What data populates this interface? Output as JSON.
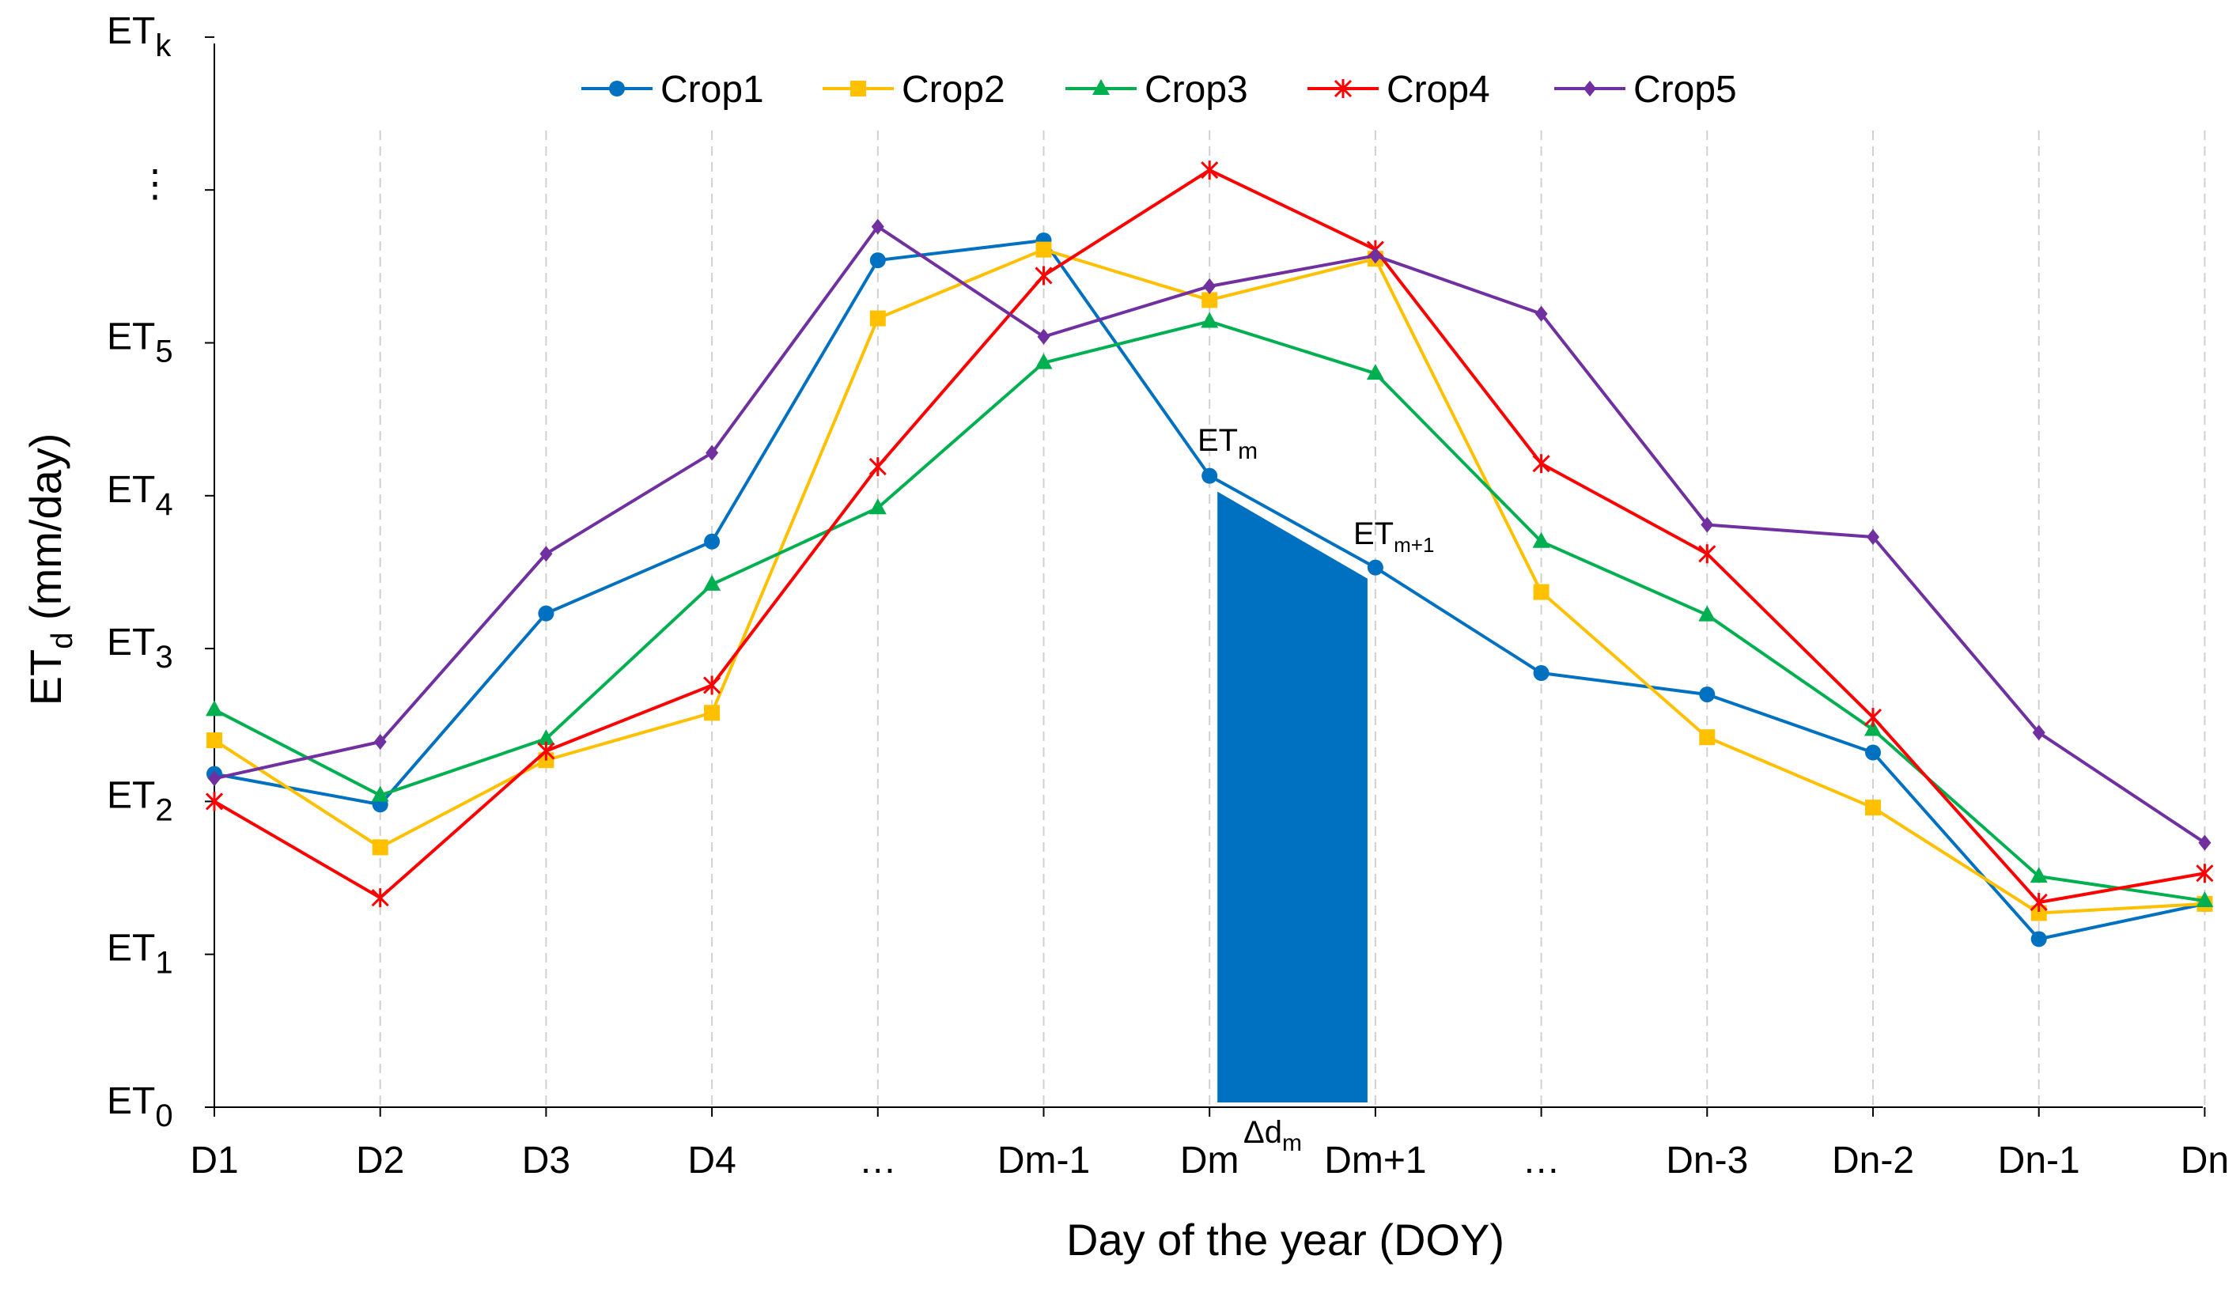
{
  "chart_data": {
    "type": "line",
    "title": "",
    "xlabel": "Day of the year (DOY)",
    "ylabel_main": "ET",
    "ylabel_sub": "d",
    "ylabel_unit": " (mm/day)",
    "categories": [
      "D1",
      "D2",
      "D3",
      "D4",
      "…",
      "Dm-1",
      "Dm",
      "Dm+1",
      "…",
      "Dn-3",
      "Dn-2",
      "Dn-1",
      "Dn"
    ],
    "ylim": [
      0,
      7
    ],
    "y_ticks": [
      {
        "value": 0,
        "main": "ET",
        "sub": "0"
      },
      {
        "value": 1,
        "main": "ET",
        "sub": "1"
      },
      {
        "value": 2,
        "main": "ET",
        "sub": "2"
      },
      {
        "value": 3,
        "main": "ET",
        "sub": "3"
      },
      {
        "value": 4,
        "main": "ET",
        "sub": "4"
      },
      {
        "value": 5,
        "main": "ET",
        "sub": "5"
      },
      {
        "value": 6,
        "main": "⋮",
        "sub": ""
      },
      {
        "value": 7,
        "main": "ET",
        "sub": "k"
      }
    ],
    "grid": "vertical-dashed",
    "legend_position": "top",
    "series": [
      {
        "name": "Crop1",
        "color": "#0070C0",
        "marker": "circle",
        "values": [
          2.18,
          1.98,
          3.23,
          3.7,
          5.54,
          5.67,
          4.13,
          3.53,
          2.84,
          2.7,
          2.32,
          1.1,
          1.33
        ]
      },
      {
        "name": "Crop2",
        "color": "#FFC000",
        "marker": "square",
        "values": [
          2.4,
          1.7,
          2.27,
          2.58,
          5.16,
          5.61,
          5.28,
          5.55,
          3.37,
          2.42,
          1.96,
          1.27,
          1.33
        ]
      },
      {
        "name": "Crop3",
        "color": "#00B050",
        "marker": "triangle",
        "values": [
          2.6,
          2.04,
          2.41,
          3.42,
          3.92,
          4.87,
          5.14,
          4.8,
          3.7,
          3.22,
          2.47,
          1.51,
          1.35
        ]
      },
      {
        "name": "Crop4",
        "color": "#FF0000",
        "marker": "star",
        "values": [
          2.0,
          1.37,
          2.33,
          2.76,
          4.19,
          5.44,
          6.13,
          5.61,
          4.21,
          3.62,
          2.55,
          1.34,
          1.53
        ]
      },
      {
        "name": "Crop5",
        "color": "#7030A0",
        "marker": "diamond",
        "values": [
          2.15,
          2.39,
          3.62,
          4.28,
          5.76,
          5.04,
          5.37,
          5.57,
          5.19,
          3.81,
          3.73,
          2.45,
          1.73
        ]
      }
    ],
    "annotations": {
      "et_m": {
        "main": "ET",
        "sub": "m"
      },
      "et_m1": {
        "main": "ET",
        "sub": "m+1"
      },
      "delta": {
        "main": "Δd",
        "sub": "m"
      },
      "shaded_area": {
        "from_index": 6,
        "to_index": 7,
        "series": "Crop1",
        "color": "#0070C0"
      }
    }
  }
}
